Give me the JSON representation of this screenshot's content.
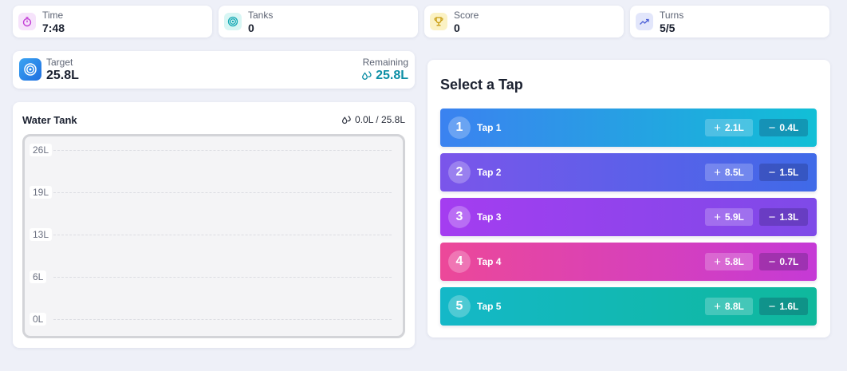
{
  "stats": [
    {
      "label": "Time",
      "value": "7:48",
      "icon": "stopwatch-icon",
      "bg": "#f6e3fb",
      "color": "#c23fd6"
    },
    {
      "label": "Tanks",
      "value": "0",
      "icon": "target-icon",
      "bg": "#d8f6f4",
      "color": "#16a9b4"
    },
    {
      "label": "Score",
      "value": "0",
      "icon": "trophy-icon",
      "bg": "#fbf2c4",
      "color": "#c79a0d"
    },
    {
      "label": "Turns",
      "value": "5/5",
      "icon": "trend-up-icon",
      "bg": "#e2e6fb",
      "color": "#4a5ed6"
    }
  ],
  "target": {
    "label": "Target",
    "value": "25.8L",
    "remaining_label": "Remaining",
    "remaining_value": "25.8L"
  },
  "tank": {
    "title": "Water Tank",
    "level_text": "0.0L / 25.8L",
    "ticks": [
      "26L",
      "19L",
      "13L",
      "6L",
      "0L"
    ],
    "fill_liters": 0.0,
    "capacity_liters": 25.8
  },
  "tap_panel": {
    "title": "Select a Tap",
    "taps": [
      {
        "number": "1",
        "name": "Tap 1",
        "add": "2.1L",
        "sub": "0.4L",
        "gradient": [
          "#3b82f0",
          "#11bfd6"
        ]
      },
      {
        "number": "2",
        "name": "Tap 2",
        "add": "8.5L",
        "sub": "1.5L",
        "gradient": [
          "#7b55ea",
          "#3f6ae8"
        ]
      },
      {
        "number": "3",
        "name": "Tap 3",
        "add": "5.9L",
        "sub": "1.3L",
        "gradient": [
          "#a43df0",
          "#7e4ae8"
        ]
      },
      {
        "number": "4",
        "name": "Tap 4",
        "add": "5.8L",
        "sub": "0.7L",
        "gradient": [
          "#ec4899",
          "#c53ad6"
        ]
      },
      {
        "number": "5",
        "name": "Tap 5",
        "add": "8.8L",
        "sub": "1.6L",
        "gradient": [
          "#14b8c8",
          "#0fb89c"
        ]
      }
    ]
  }
}
